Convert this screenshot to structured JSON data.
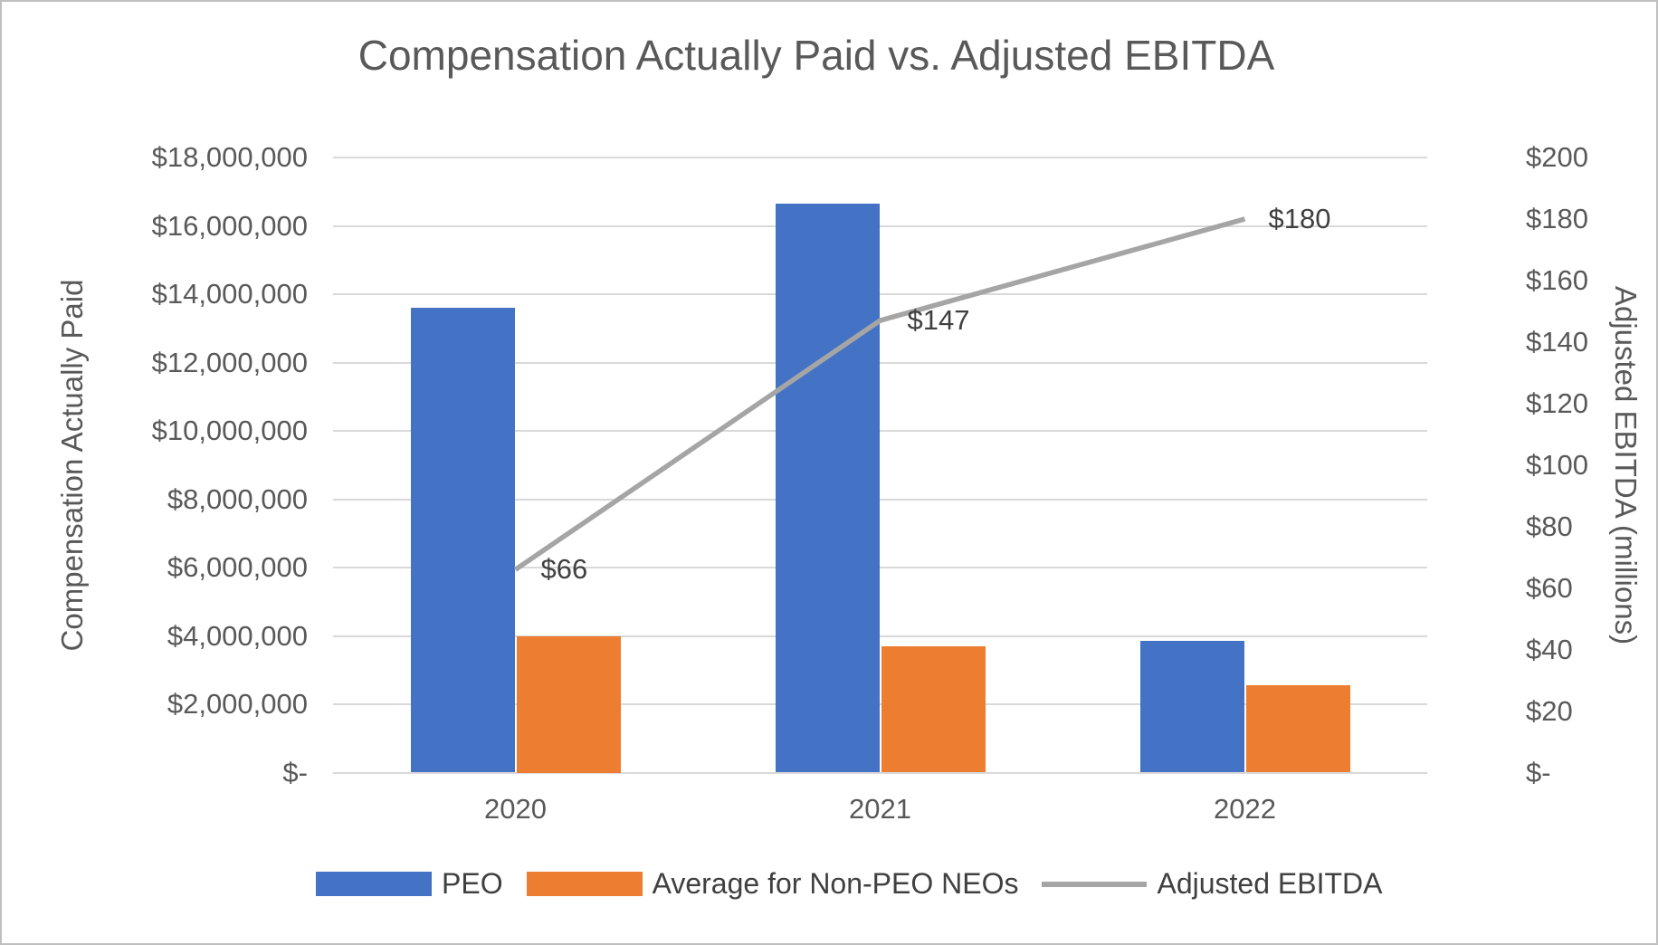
{
  "title": "Compensation Actually Paid vs. Adjusted EBITDA",
  "chart_data": {
    "type": "combo",
    "subtype": "grouped-bars-with-line",
    "categories": [
      "2020",
      "2021",
      "2022"
    ],
    "series": [
      {
        "name": "PEO",
        "type": "bar",
        "axis": "left",
        "color": "#4472C4",
        "values": [
          13600000,
          16650000,
          3850000
        ]
      },
      {
        "name": "Average for Non-PEO NEOs",
        "type": "bar",
        "axis": "left",
        "color": "#ED7D31",
        "values": [
          4000000,
          3700000,
          2550000
        ]
      },
      {
        "name": "Adjusted EBITDA",
        "type": "line",
        "axis": "right",
        "color": "#A5A5A5",
        "values": [
          66,
          147,
          180
        ],
        "point_labels": [
          "$66",
          "$147",
          "$180"
        ]
      }
    ],
    "left_axis": {
      "title": "Compensation Actually Paid",
      "min": 0,
      "max": 18000000,
      "step": 2000000,
      "ticks": [
        "$18,000,000",
        "$16,000,000",
        "$14,000,000",
        "$12,000,000",
        "$10,000,000",
        "$8,000,000",
        "$6,000,000",
        "$4,000,000",
        "$2,000,000",
        "$-"
      ]
    },
    "right_axis": {
      "title": "Adjusted EBITDA (millions)",
      "min": 0,
      "max": 200,
      "step": 20,
      "ticks": [
        "$200",
        "$180",
        "$160",
        "$140",
        "$120",
        "$100",
        "$80",
        "$60",
        "$40",
        "$20",
        "$-"
      ]
    },
    "grid": true,
    "legend_position": "bottom",
    "legend": [
      "PEO",
      "Average for Non-PEO NEOs",
      "Adjusted EBITDA"
    ]
  },
  "colors": {
    "peo_bar": "#4472C4",
    "non_peo_bar": "#ED7D31",
    "ebitda_line": "#A5A5A5",
    "gridline": "#D9D9D9",
    "axis_text": "#595959",
    "data_label_text": "#404040"
  }
}
